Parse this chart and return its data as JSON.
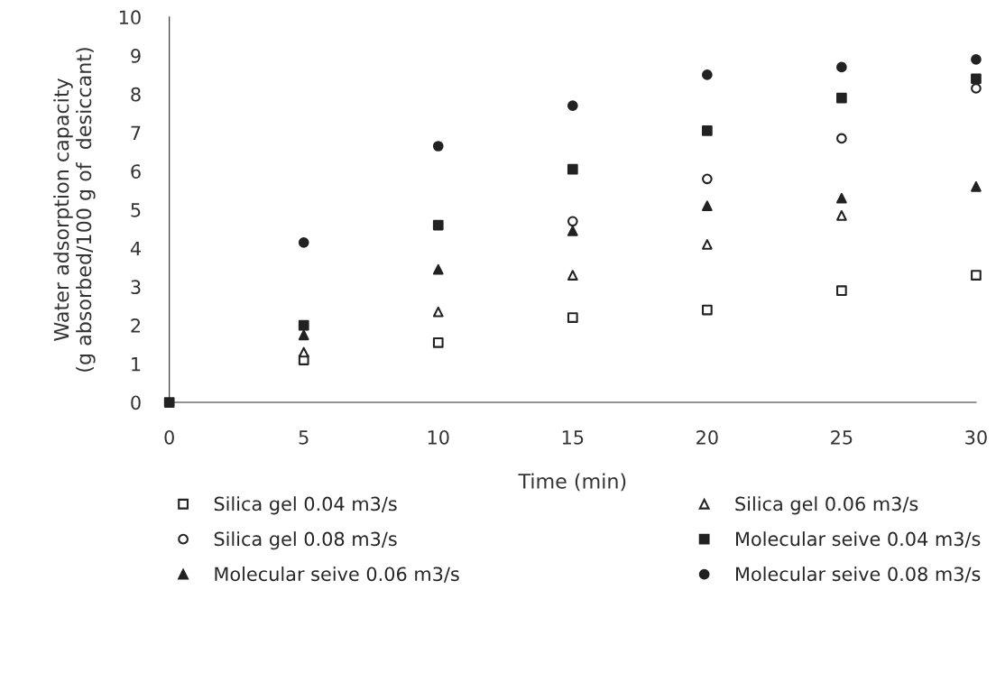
{
  "chart_data": {
    "type": "scatter",
    "xlabel": "Time (min)",
    "ylabel": "Water adsorption capacity\n(g absorbed/100 g of  desiccant)",
    "x": [
      0,
      5,
      10,
      15,
      20,
      25,
      30
    ],
    "series": [
      {
        "name": "Silica gel 0.04 m3/s",
        "color": "#ffffff",
        "marker": "square",
        "values": [
          null,
          1.1,
          1.55,
          2.2,
          2.4,
          2.9,
          3.3
        ]
      },
      {
        "name": "Silica gel 0.08 m3/s",
        "color": "#ffffff",
        "marker": "circle",
        "values": [
          null,
          null,
          null,
          4.7,
          5.8,
          6.85,
          8.15
        ]
      },
      {
        "name": "Molecular seive 0.06 m3/s",
        "color": "#222222",
        "marker": "triangle",
        "values": [
          null,
          1.75,
          3.45,
          4.45,
          5.1,
          5.3,
          5.6
        ]
      },
      {
        "name": "Silica gel 0.06 m3/s",
        "color": "#ffffff",
        "marker": "triangle",
        "values": [
          null,
          1.3,
          2.35,
          3.3,
          4.1,
          4.85,
          null
        ]
      },
      {
        "name": "Molecular seive 0.04 m3/s",
        "color": "#222222",
        "marker": "square",
        "values": [
          0,
          2.0,
          4.6,
          6.05,
          7.05,
          7.9,
          8.4
        ]
      },
      {
        "name": "Molecular seive 0.08 m3/s",
        "color": "#222222",
        "marker": "circle",
        "values": [
          null,
          4.15,
          6.65,
          7.7,
          8.5,
          8.7,
          8.9
        ]
      }
    ],
    "xlim": [
      0,
      30
    ],
    "xticks": [
      0,
      5,
      10,
      15,
      20,
      25,
      30
    ],
    "ylim": [
      0,
      10
    ],
    "yticks": [
      0,
      1,
      2,
      3,
      4,
      5,
      6,
      7,
      8,
      9,
      10
    ],
    "grid": false,
    "legend": "bottom"
  }
}
